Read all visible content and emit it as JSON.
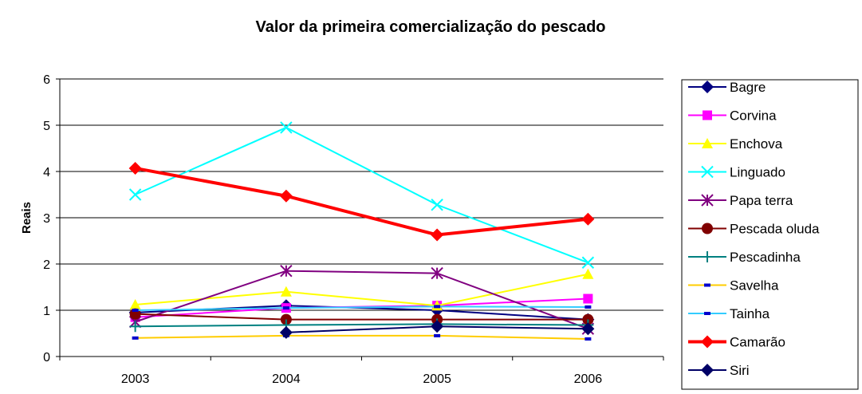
{
  "chart_data": {
    "type": "line",
    "title": "Valor da primeira comercialização do pescado",
    "y_label": "Reais",
    "categories": [
      "2003",
      "2004",
      "2005",
      "2006"
    ],
    "ylim": [
      0,
      6
    ],
    "yticks": [
      0,
      1,
      2,
      3,
      4,
      5,
      6
    ],
    "grid": true,
    "legend": "right",
    "series": [
      {
        "name": "Bagre",
        "color": "#000080",
        "marker": "diamond",
        "values": [
          0.95,
          1.1,
          1.0,
          0.8
        ]
      },
      {
        "name": "Corvina",
        "color": "#ff00ff",
        "marker": "square",
        "values": [
          0.85,
          1.05,
          1.1,
          1.25
        ]
      },
      {
        "name": "Enchova",
        "color": "#ffff00",
        "marker": "triangle",
        "values": [
          1.12,
          1.4,
          1.1,
          1.78
        ]
      },
      {
        "name": "Linguado",
        "color": "#00ffff",
        "marker": "x",
        "values": [
          3.5,
          4.95,
          3.28,
          2.03
        ]
      },
      {
        "name": "Papa terra",
        "color": "#800080",
        "marker": "asterisk",
        "values": [
          0.75,
          1.85,
          1.8,
          0.6
        ]
      },
      {
        "name": "Pescada oluda",
        "color": "#800000",
        "marker": "circle",
        "values": [
          0.92,
          0.8,
          0.8,
          0.8
        ]
      },
      {
        "name": "Pescadinha",
        "color": "#008080",
        "marker": "plus",
        "values": [
          0.65,
          0.68,
          0.7,
          0.68
        ]
      },
      {
        "name": "Savelha",
        "color": "#ffcc00",
        "marker": "dash",
        "values": [
          0.4,
          0.45,
          0.45,
          0.38
        ]
      },
      {
        "name": "Tainha",
        "color": "#33ccff",
        "marker": "dash",
        "values": [
          1.0,
          1.05,
          1.08,
          1.07
        ]
      },
      {
        "name": "Camarão",
        "color": "#ff0000",
        "marker": "diamond",
        "values": [
          4.07,
          3.47,
          2.63,
          2.97
        ]
      },
      {
        "name": "Siri",
        "color": "#000066",
        "marker": "diamond",
        "values": [
          null,
          0.52,
          0.65,
          0.6
        ]
      }
    ]
  }
}
